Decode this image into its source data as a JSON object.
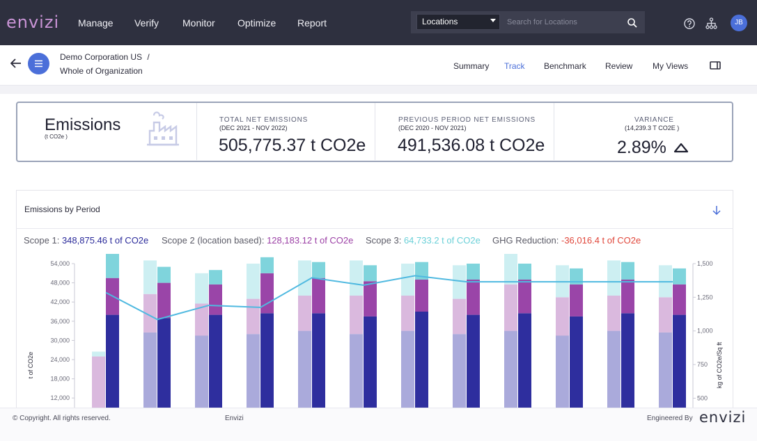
{
  "brand": {
    "logo": "envizi",
    "footer_logo": "envizi"
  },
  "nav": {
    "items": [
      "Manage",
      "Verify",
      "Monitor",
      "Optimize",
      "Report"
    ]
  },
  "search": {
    "selected": "Locations",
    "placeholder": "Search for Locations"
  },
  "user": {
    "initials": "JB"
  },
  "icons": {
    "help": "help-circle-icon",
    "org": "hierarchy-icon",
    "search": "magnifier-icon",
    "back": "arrow-left-icon",
    "menu": "hamburger-icon",
    "panel": "panel-icon",
    "download": "arrow-down-icon",
    "emissions": "factory-icon",
    "variance": "triangle-up-icon"
  },
  "breadcrumb": {
    "line1": "Demo Corporation US",
    "sep": "/",
    "line2": "Whole of Organization"
  },
  "tabs": [
    "Summary",
    "Track",
    "Benchmark",
    "Review",
    "My Views"
  ],
  "active_tab": "Track",
  "kpi": {
    "title": "Emissions",
    "unit": "(t CO2e )",
    "total": {
      "label": "TOTAL NET EMISSIONS",
      "period": "(DEC 2021 - NOV 2022)",
      "value": "505,775.37 t CO2e"
    },
    "previous": {
      "label": "PREVIOUS PERIOD NET EMISSIONS",
      "period": "(DEC 2020 - NOV 2021)",
      "value": "491,536.08 t CO2e"
    },
    "variance": {
      "label": "VARIANCE",
      "sub": "(14,239.3 T CO2E )",
      "value": "2.89%"
    }
  },
  "chart_section": {
    "title": "Emissions by Period",
    "legend": [
      {
        "label": "Scope 1:",
        "value": "348,875.46 t of CO2e",
        "color": "#2a2a9a"
      },
      {
        "label": "Scope 2 (location based):",
        "value": "128,183.12 t of CO2e",
        "color": "#9b3fa5"
      },
      {
        "label": "Scope 3:",
        "value": "64,733.2 t of CO2e",
        "color": "#6ad0d8"
      },
      {
        "label": "GHG Reduction:",
        "value": "-36,016.4 t of CO2e",
        "color": "#e0463a"
      }
    ]
  },
  "chart_data": {
    "type": "bar",
    "ylabel": "t of CO2e",
    "y2label": "kg of CO2e/Sq ft",
    "y_ticks": [
      "54,000",
      "48,000",
      "42,000",
      "36,000",
      "30,000",
      "24,000",
      "18,000",
      "12,000"
    ],
    "y2_ticks": [
      "1,500",
      "1,250",
      "1,000",
      "750",
      "500"
    ],
    "ylim": [
      9000,
      54000
    ],
    "y2lim": [
      430,
      1500
    ],
    "colors": {
      "scope1": "#2e2e9e",
      "scope2": "#9a45a8",
      "scope3": "#7fd4dc",
      "prev_scope1": "#aaaadb",
      "prev_scope2": "#dab9de",
      "prev_scope3": "#cdeff2",
      "line": "#4fb9e0"
    },
    "current": [
      {
        "scope1": 29000,
        "scope2": 11500,
        "scope3": 10500
      },
      {
        "scope1": 28000,
        "scope2": 11000,
        "scope3": 5000
      },
      {
        "scope1": 29000,
        "scope2": 9500,
        "scope3": 4500
      },
      {
        "scope1": 29500,
        "scope2": 12500,
        "scope3": 5000
      },
      {
        "scope1": 29500,
        "scope2": 11000,
        "scope3": 5000
      },
      {
        "scope1": 28500,
        "scope2": 11000,
        "scope3": 5000
      },
      {
        "scope1": 30000,
        "scope2": 10000,
        "scope3": 5500
      },
      {
        "scope1": 29000,
        "scope2": 11000,
        "scope3": 5000
      },
      {
        "scope1": 29500,
        "scope2": 10500,
        "scope3": 5000
      },
      {
        "scope1": 28500,
        "scope2": 10000,
        "scope3": 5000
      },
      {
        "scope1": 29500,
        "scope2": 10500,
        "scope3": 5500
      },
      {
        "scope1": 29000,
        "scope2": 9500,
        "scope3": 5000
      }
    ],
    "previous": [
      {
        "scope1": 0,
        "scope2": 16000,
        "scope3": 1500
      },
      {
        "scope1": 23500,
        "scope2": 12000,
        "scope3": 10500
      },
      {
        "scope1": 22500,
        "scope2": 10000,
        "scope3": 9500
      },
      {
        "scope1": 23000,
        "scope2": 11000,
        "scope3": 11000
      },
      {
        "scope1": 24000,
        "scope2": 11000,
        "scope3": 11000
      },
      {
        "scope1": 23000,
        "scope2": 12000,
        "scope3": 11000
      },
      {
        "scope1": 24000,
        "scope2": 11000,
        "scope3": 10000
      },
      {
        "scope1": 23000,
        "scope2": 11000,
        "scope3": 10500
      },
      {
        "scope1": 24000,
        "scope2": 14500,
        "scope3": 10500
      },
      {
        "scope1": 22500,
        "scope2": 12000,
        "scope3": 10000
      },
      {
        "scope1": 24000,
        "scope2": 11000,
        "scope3": 11000
      },
      {
        "scope1": 23500,
        "scope2": 11000,
        "scope3": 10000
      }
    ],
    "intensity": [
      1285,
      1085,
      1190,
      1175,
      1395,
      1340,
      1410,
      1365,
      1365,
      1365,
      1365,
      1365
    ]
  },
  "footer": {
    "copyright": "© Copyright. All rights reserved.",
    "center": "Envizi",
    "engineered": "Engineered By"
  }
}
